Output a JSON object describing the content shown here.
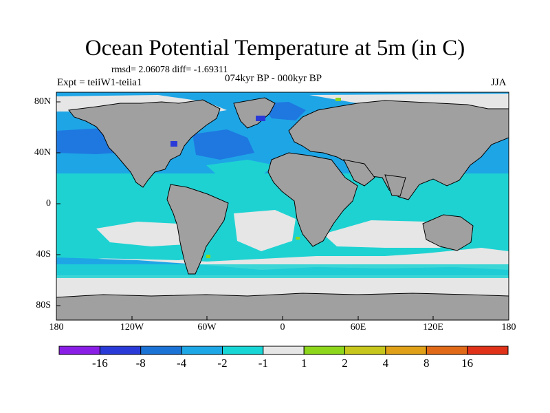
{
  "title": "Ocean Potential Temperature at 5m (in C)",
  "stats": "rmsd= 2.06078 diff= -1.69311",
  "period": "074kyr BP - 000kyr BP",
  "experiment": "Expt = teiiW1-teiia1",
  "season": "JJA",
  "axes": {
    "y_ticks": [
      "80N",
      "40N",
      "0",
      "40S",
      "80S"
    ],
    "x_ticks": [
      "180",
      "120W",
      "60W",
      "0",
      "60E",
      "120E",
      "180"
    ]
  },
  "colorbar": {
    "labels": [
      "-16",
      "-8",
      "-4",
      "-2",
      "-1",
      "1",
      "2",
      "4",
      "8",
      "16"
    ],
    "colors": [
      "#8a1ee6",
      "#2a3ad8",
      "#1c73d6",
      "#1ea7e6",
      "#18d6d6",
      "#e6e6e6",
      "#8ed61c",
      "#c6c61c",
      "#e0a018",
      "#e06a18",
      "#e03218"
    ]
  },
  "map_colors": {
    "land": "#a0a0a0",
    "deep_cooling": "#1e78e0",
    "cooling": "#1ea5e6",
    "mild_cooling": "#1ed2d2",
    "near_zero": "#e6e6e6",
    "strong_cooling": "#2a3ad8",
    "warming": "#8ed61c",
    "coastline": "#000000"
  }
}
